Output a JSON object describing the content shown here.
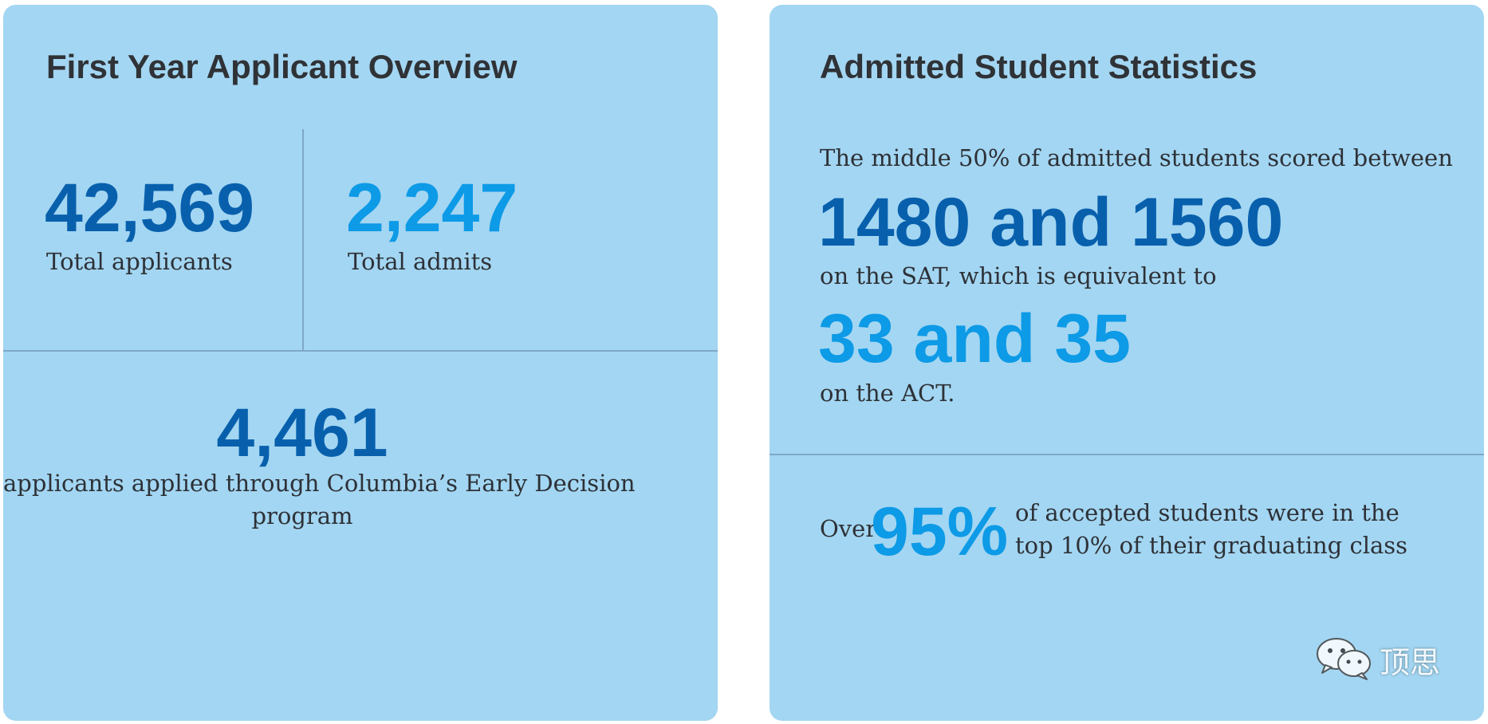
{
  "left_card": {
    "title": "First Year Applicant Overview",
    "total_applicants": {
      "value": "42,569",
      "label": "Total applicants"
    },
    "total_admits": {
      "value": "2,247",
      "label": "Total admits"
    },
    "early_decision": {
      "value": "4,461",
      "label_line1": "applicants applied through Columbia’s Early Decision",
      "label_line2": "program"
    }
  },
  "right_card": {
    "title": "Admitted Student Statistics",
    "intro": "The middle 50% of admitted students scored between",
    "sat_range": "1480 and 1560",
    "sat_text": "on the SAT, which is equivalent to",
    "act_range": "33 and 35",
    "act_text": "on the ACT.",
    "top_prefix": "Over",
    "top_percent": "95%",
    "top_text_line1": "of accepted students were in the",
    "top_text_line2": "top 10% of their graduating class"
  },
  "watermark": {
    "text": "顶思",
    "icon": "wechat-icon"
  },
  "colors": {
    "card_background": "#a3d6f2",
    "dark_blue": "#0860ad",
    "light_blue": "#0d9ae6",
    "title_text": "#2f3236",
    "divider": "#7ea8c7"
  }
}
